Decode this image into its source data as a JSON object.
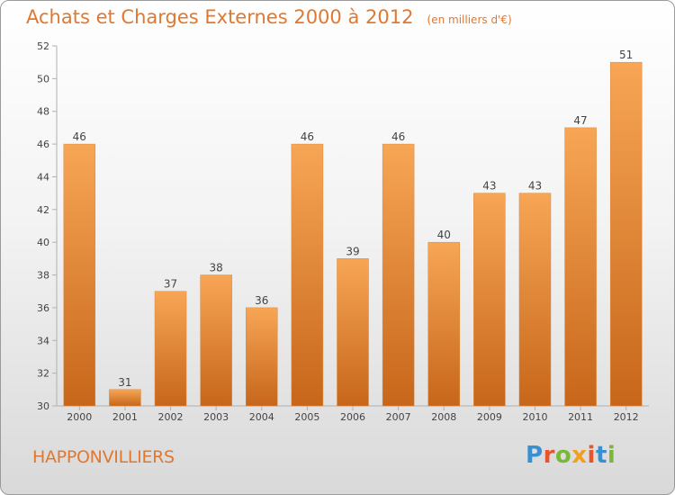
{
  "header": {
    "title": "Achats et Charges Externes 2000 à 2012",
    "unit": "(en milliers d'€)"
  },
  "footer": {
    "commune": "HAPPONVILLIERS",
    "brand": "Proxiti"
  },
  "colors": {
    "accent": "#e07830",
    "bar_light": "#f7a655",
    "bar_dark": "#c7661a",
    "brand_letters": [
      "#3a8fd0",
      "#e8542c",
      "#7ab83a",
      "#f0a020",
      "#e8542c",
      "#3a8fd0",
      "#7ab83a"
    ]
  },
  "chart_data": {
    "type": "bar",
    "title": "Achats et Charges Externes 2000 à 2012",
    "subtitle": "(en milliers d'€)",
    "categories": [
      "2000",
      "2001",
      "2002",
      "2003",
      "2004",
      "2005",
      "2006",
      "2007",
      "2008",
      "2009",
      "2010",
      "2011",
      "2012"
    ],
    "values": [
      46,
      31,
      37,
      38,
      36,
      46,
      39,
      46,
      40,
      43,
      43,
      47,
      51
    ],
    "ylim": [
      30,
      52
    ],
    "yticks": [
      30,
      32,
      34,
      36,
      38,
      40,
      42,
      44,
      46,
      48,
      50,
      52
    ],
    "grid": false,
    "legend": "none"
  }
}
